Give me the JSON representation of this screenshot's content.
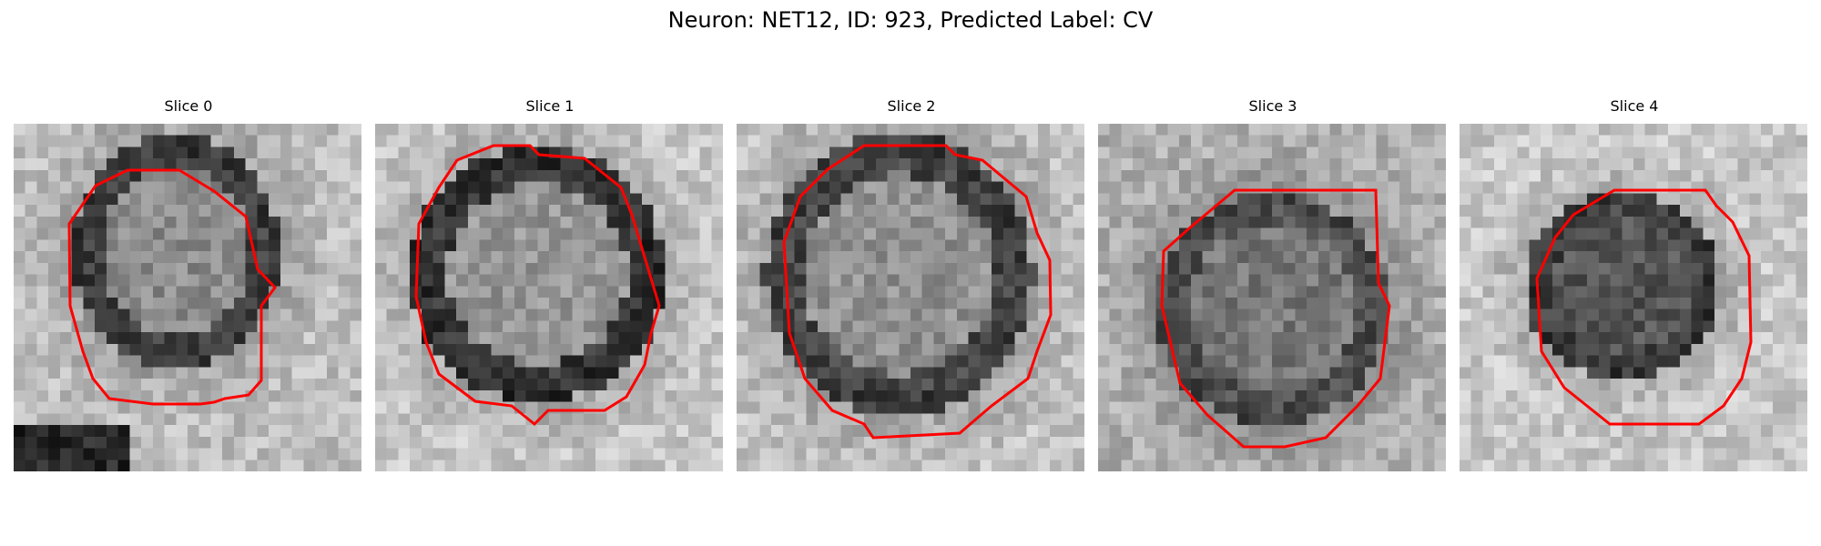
{
  "figure": {
    "title": "Neuron: NET12, ID: 923, Predicted Label: CV",
    "outline_color": "#ff0000",
    "colormap": "grayscale"
  },
  "panels": [
    {
      "label": "Slice 0"
    },
    {
      "label": "Slice 1"
    },
    {
      "label": "Slice 2"
    },
    {
      "label": "Slice 3"
    },
    {
      "label": "Slice 4"
    }
  ]
}
